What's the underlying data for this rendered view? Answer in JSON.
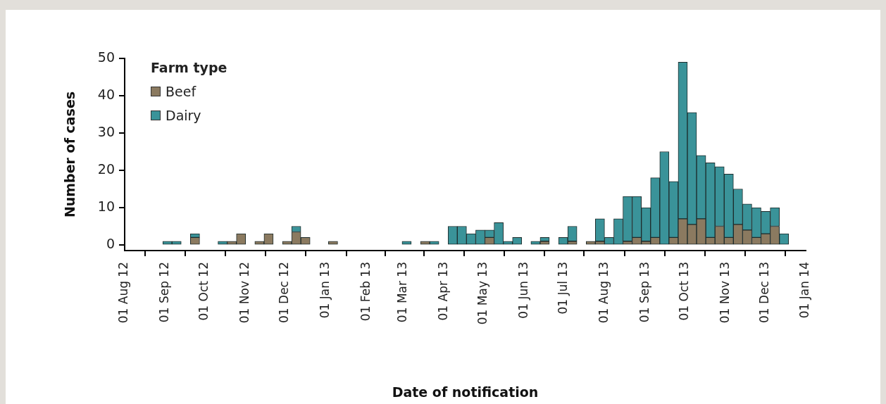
{
  "chart_data": {
    "type": "bar",
    "stacked": true,
    "xlabel": "Date of notification",
    "ylabel": "Number of cases",
    "legend_title": "Farm type",
    "legend": "top left",
    "x": [
      "2012-09-02T12:00",
      "2012-09-09T12:00",
      "2012-09-16T12:00",
      "2012-09-23T12:00",
      "2012-09-30T12:00",
      "2012-10-07T12:00",
      "2012-10-14T12:00",
      "2012-10-21T12:00",
      "2012-10-28T12:00",
      "2012-11-04T12:00",
      "2012-11-11T12:00",
      "2012-11-18T12:00",
      "2012-11-25T12:00",
      "2012-12-02T12:00",
      "2012-12-09T12:00",
      "2012-12-16T12:00",
      "2012-12-23T12:00",
      "2012-12-30T12:00",
      "2013-01-06T12:00",
      "2013-01-13T12:00",
      "2013-01-20T12:00",
      "2013-01-27T12:00",
      "2013-02-03T12:00",
      "2013-02-10T12:00",
      "2013-02-17T12:00",
      "2013-02-24T12:00",
      "2013-03-03T12:00",
      "2013-03-10T12:00",
      "2013-03-17T12:00",
      "2013-03-24T12:00",
      "2013-03-31T12:00",
      "2013-04-07T12:00",
      "2013-04-14T12:00",
      "2013-04-21T12:00",
      "2013-04-28T12:00",
      "2013-05-05T12:00",
      "2013-05-12T12:00",
      "2013-05-19T12:00",
      "2013-05-26T12:00",
      "2013-06-02T12:00",
      "2013-06-09T12:00",
      "2013-06-16T12:00",
      "2013-06-23T12:00",
      "2013-06-30T12:00",
      "2013-07-07T12:00",
      "2013-07-14T12:00",
      "2013-07-21T12:00",
      "2013-07-28T12:00",
      "2013-08-04T12:00",
      "2013-08-11T12:00",
      "2013-08-18T12:00",
      "2013-08-25T12:00",
      "2013-09-01T12:00",
      "2013-09-08T12:00",
      "2013-09-15T12:00",
      "2013-09-22T12:00",
      "2013-09-29T12:00",
      "2013-10-06T12:00",
      "2013-10-13T12:00",
      "2013-10-20T12:00",
      "2013-10-27T12:00",
      "2013-11-03T12:00",
      "2013-11-10T12:00",
      "2013-11-17T12:00",
      "2013-11-24T12:00",
      "2013-12-01T12:00",
      "2013-12-08T12:00",
      "2013-12-15T12:00"
    ],
    "series": [
      {
        "name": "Beef",
        "color": "#8b7a60",
        "values": [
          0,
          0,
          0,
          2,
          0,
          0,
          0,
          1,
          3,
          0,
          1,
          3,
          0,
          1,
          3.5,
          2,
          0,
          0,
          1,
          0,
          0,
          0,
          0,
          0,
          0,
          0,
          0,
          0,
          1,
          0,
          0,
          0,
          0,
          0,
          0,
          2,
          0,
          0,
          0,
          0,
          0,
          1,
          0,
          0,
          1,
          0,
          1,
          1,
          0,
          0,
          1,
          2,
          1,
          2,
          0,
          2,
          7,
          5.5,
          7,
          2,
          5,
          2,
          5.5,
          4,
          2,
          3,
          5,
          0
        ]
      },
      {
        "name": "Dairy",
        "color": "#3a9399",
        "values": [
          1,
          1,
          0,
          1,
          0,
          0,
          1,
          0,
          0,
          0,
          0,
          0,
          0,
          0,
          1.5,
          0,
          0,
          0,
          0,
          0,
          0,
          0,
          0,
          0,
          0,
          0,
          1,
          0,
          0,
          1,
          0,
          5,
          5,
          3,
          4,
          2,
          6,
          1,
          2,
          0,
          1,
          1,
          0,
          2,
          4,
          0,
          0,
          6,
          2,
          7,
          12,
          11,
          9,
          16,
          25,
          15,
          42,
          30,
          17,
          20,
          16,
          17,
          9.5,
          7,
          8,
          6,
          5,
          3
        ]
      }
    ],
    "xlim": [
      "2012-08-01",
      "2014-01-01"
    ],
    "xticks": [
      {
        "value": "2012-08-01",
        "label": "01 Aug 12"
      },
      {
        "value": "2012-09-01",
        "label": "01 Sep 12"
      },
      {
        "value": "2012-10-01",
        "label": "01 Oct 12"
      },
      {
        "value": "2012-11-01",
        "label": "01 Nov 12"
      },
      {
        "value": "2012-12-01",
        "label": "01 Dec 12"
      },
      {
        "value": "2013-01-01",
        "label": "01 Jan 13"
      },
      {
        "value": "2013-02-01",
        "label": "01 Feb 13"
      },
      {
        "value": "2013-03-01",
        "label": "01 Mar 13"
      },
      {
        "value": "2013-04-01",
        "label": "01 Apr 13"
      },
      {
        "value": "2013-05-01",
        "label": "01 May 13"
      },
      {
        "value": "2013-06-01",
        "label": "01 Jun 13"
      },
      {
        "value": "2013-07-01",
        "label": "01 Jul 13"
      },
      {
        "value": "2013-08-01",
        "label": "01 Aug 13"
      },
      {
        "value": "2013-09-01",
        "label": "01 Sep 13"
      },
      {
        "value": "2013-10-01",
        "label": "01 Oct 13"
      },
      {
        "value": "2013-11-01",
        "label": "01 Nov 13"
      },
      {
        "value": "2013-12-01",
        "label": "01 Dec 13"
      },
      {
        "value": "2014-01-01",
        "label": "01 Jan 14"
      }
    ],
    "ylim": [
      -1.5,
      50
    ],
    "yticks": [
      0,
      10,
      20,
      30,
      40,
      50
    ]
  }
}
